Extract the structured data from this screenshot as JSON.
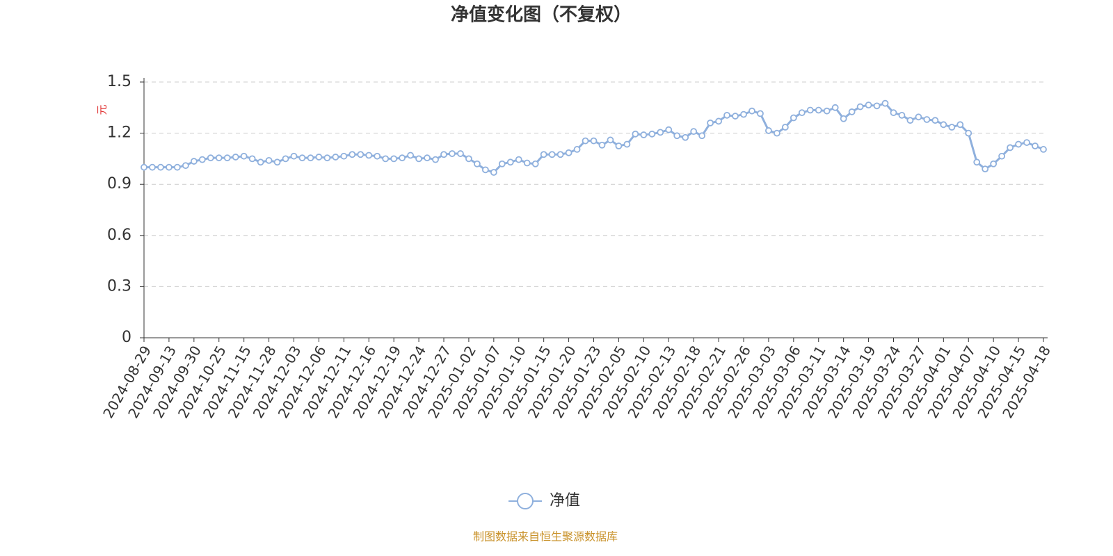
{
  "chart_data": {
    "type": "line",
    "title": "净值变化图（不复权）",
    "y_axis_label": "元",
    "categories": [
      "2024-08-29",
      null,
      null,
      "2024-09-13",
      null,
      null,
      "2024-09-30",
      null,
      null,
      "2024-10-25",
      null,
      null,
      "2024-11-15",
      null,
      null,
      "2024-11-28",
      null,
      null,
      "2024-12-03",
      null,
      null,
      "2024-12-06",
      null,
      null,
      "2024-12-11",
      null,
      null,
      "2024-12-16",
      null,
      null,
      "2024-12-19",
      null,
      null,
      "2024-12-24",
      null,
      null,
      "2024-12-27",
      null,
      null,
      "2025-01-02",
      null,
      null,
      "2025-01-07",
      null,
      null,
      "2025-01-10",
      null,
      null,
      "2025-01-15",
      null,
      null,
      "2025-01-20",
      null,
      null,
      "2025-01-23",
      null,
      null,
      "2025-02-05",
      null,
      null,
      "2025-02-10",
      null,
      null,
      "2025-02-13",
      null,
      null,
      "2025-02-18",
      null,
      null,
      "2025-02-21",
      null,
      null,
      "2025-02-26",
      null,
      null,
      "2025-03-03",
      null,
      null,
      "2025-03-06",
      null,
      null,
      "2025-03-11",
      null,
      null,
      "2025-03-14",
      null,
      null,
      "2025-03-19",
      null,
      null,
      "2025-03-24",
      null,
      null,
      "2025-03-27",
      null,
      null,
      "2025-04-01",
      null,
      null,
      "2025-04-07",
      null,
      null,
      "2025-04-10",
      null,
      null,
      "2025-04-15",
      null,
      null,
      "2025-04-18"
    ],
    "series": [
      {
        "name": "净值",
        "color": "#8fb0dd",
        "values": [
          1.0,
          1.0,
          1.0,
          1.0,
          1.0,
          1.01,
          1.035,
          1.045,
          1.055,
          1.055,
          1.055,
          1.06,
          1.065,
          1.05,
          1.03,
          1.04,
          1.03,
          1.05,
          1.065,
          1.055,
          1.055,
          1.06,
          1.055,
          1.06,
          1.065,
          1.075,
          1.075,
          1.07,
          1.065,
          1.05,
          1.05,
          1.055,
          1.07,
          1.05,
          1.055,
          1.045,
          1.075,
          1.08,
          1.08,
          1.05,
          1.02,
          0.985,
          0.97,
          1.02,
          1.03,
          1.045,
          1.025,
          1.02,
          1.075,
          1.075,
          1.075,
          1.085,
          1.105,
          1.155,
          1.155,
          1.13,
          1.16,
          1.125,
          1.135,
          1.195,
          1.19,
          1.195,
          1.205,
          1.22,
          1.185,
          1.175,
          1.21,
          1.185,
          1.26,
          1.27,
          1.305,
          1.3,
          1.31,
          1.33,
          1.315,
          1.215,
          1.2,
          1.235,
          1.29,
          1.32,
          1.335,
          1.335,
          1.33,
          1.35,
          1.285,
          1.325,
          1.355,
          1.365,
          1.36,
          1.375,
          1.32,
          1.305,
          1.275,
          1.295,
          1.28,
          1.275,
          1.25,
          1.235,
          1.25,
          1.2,
          1.03,
          0.99,
          1.02,
          1.065,
          1.115,
          1.135,
          1.145,
          1.125,
          1.105
        ]
      }
    ],
    "ylim": [
      0,
      1.5
    ],
    "yticks": [
      0,
      0.3,
      0.6,
      0.9,
      1.2,
      1.5
    ],
    "grid": true,
    "legend_position": "bottom",
    "source": "制图数据来自恒生聚源数据库"
  }
}
